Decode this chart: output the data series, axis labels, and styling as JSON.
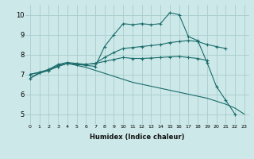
{
  "background_color": "#cce8e8",
  "grid_color": "#aacccc",
  "line_color": "#1a6b6b",
  "xlabel": "Humidex (Indice chaleur)",
  "xlim": [
    -0.5,
    23.5
  ],
  "ylim": [
    4.5,
    10.5
  ],
  "xticks": [
    0,
    1,
    2,
    3,
    4,
    5,
    6,
    7,
    8,
    9,
    10,
    11,
    12,
    13,
    14,
    15,
    16,
    17,
    18,
    19,
    20,
    21,
    22,
    23
  ],
  "yticks": [
    5,
    6,
    7,
    8,
    9,
    10
  ],
  "series": [
    {
      "x": [
        0,
        1,
        2,
        3,
        4,
        5,
        6,
        7,
        8,
        9,
        10,
        11,
        12,
        13,
        14,
        15,
        16,
        17,
        18,
        19,
        20,
        21,
        22
      ],
      "y": [
        6.8,
        7.1,
        7.2,
        7.4,
        7.55,
        7.5,
        7.45,
        7.4,
        8.4,
        9.0,
        9.55,
        9.5,
        9.55,
        9.5,
        9.55,
        10.1,
        10.0,
        8.9,
        8.7,
        7.6,
        6.4,
        5.7,
        5.0
      ],
      "marker": true
    },
    {
      "x": [
        0,
        1,
        2,
        3,
        4,
        5,
        6,
        7,
        8,
        9,
        10,
        11,
        12,
        13,
        14,
        15,
        16,
        17,
        18,
        19,
        20,
        21
      ],
      "y": [
        7.0,
        7.1,
        7.25,
        7.5,
        7.6,
        7.55,
        7.5,
        7.55,
        7.85,
        8.1,
        8.3,
        8.35,
        8.4,
        8.45,
        8.5,
        8.6,
        8.65,
        8.7,
        8.65,
        8.5,
        8.4,
        8.3
      ],
      "marker": true
    },
    {
      "x": [
        0,
        1,
        2,
        3,
        4,
        5,
        6,
        7,
        8,
        9,
        10,
        11,
        12,
        13,
        14,
        15,
        16,
        17,
        18,
        19
      ],
      "y": [
        7.0,
        7.1,
        7.2,
        7.4,
        7.55,
        7.5,
        7.5,
        7.55,
        7.65,
        7.75,
        7.85,
        7.8,
        7.8,
        7.82,
        7.85,
        7.88,
        7.9,
        7.85,
        7.8,
        7.7
      ],
      "marker": true
    },
    {
      "x": [
        0,
        1,
        2,
        3,
        4,
        5,
        6,
        7,
        8,
        9,
        10,
        11,
        12,
        13,
        14,
        15,
        16,
        17,
        18,
        19,
        20,
        21,
        22,
        23
      ],
      "y": [
        6.8,
        7.05,
        7.2,
        7.45,
        7.55,
        7.45,
        7.35,
        7.2,
        7.05,
        6.9,
        6.75,
        6.6,
        6.5,
        6.4,
        6.3,
        6.2,
        6.1,
        6.0,
        5.9,
        5.8,
        5.65,
        5.5,
        5.3,
        5.0
      ],
      "marker": false
    }
  ]
}
